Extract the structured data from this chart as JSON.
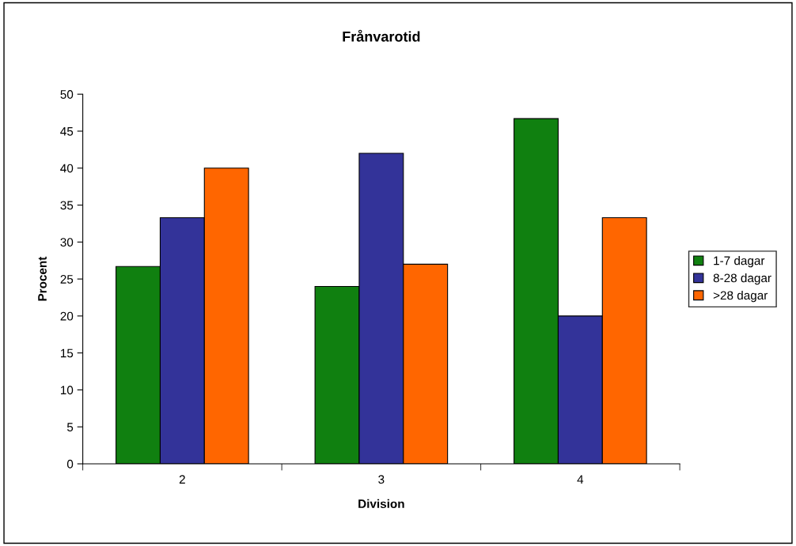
{
  "chart_data": {
    "type": "bar",
    "title": "Frånvarotid",
    "xlabel": "Division",
    "ylabel": "Procent",
    "categories": [
      "2",
      "3",
      "4"
    ],
    "series": [
      {
        "name": "1-7 dagar",
        "color": "#108010",
        "values": [
          26.7,
          24,
          46.7
        ]
      },
      {
        "name": "8-28 dagar",
        "color": "#333399",
        "values": [
          33.3,
          42,
          20
        ]
      },
      {
        "name": ">28 dagar",
        "color": "#ff6600",
        "values": [
          40,
          27,
          33.3
        ]
      }
    ],
    "ylim": [
      0,
      50
    ],
    "yticks": [
      0,
      5,
      10,
      15,
      20,
      25,
      30,
      35,
      40,
      45,
      50
    ],
    "grid": false,
    "legend": "right"
  }
}
